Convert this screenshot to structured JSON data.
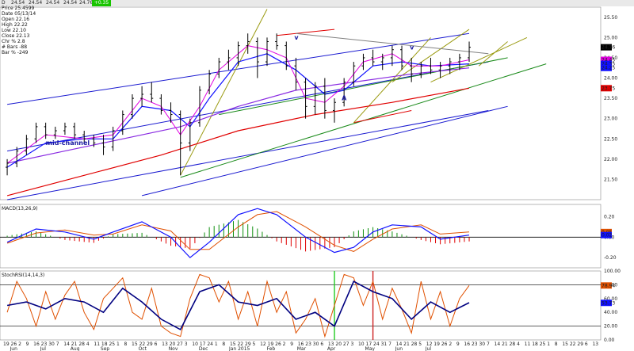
{
  "toolbar": {
    "items": [
      "D",
      "24.54",
      "24.54",
      "24.54",
      "24.54",
      "24.76",
      "+0.35"
    ],
    "change_color": "#18c400"
  },
  "info_box": {
    "lines": [
      "Price 25.4599",
      "Date 05/13/14",
      "Open 22.16",
      "High 22.22",
      "Low 22.10",
      "Close 22.13",
      "Chr % 2.8",
      "# Bars -88",
      "Bar % -249"
    ]
  },
  "annotations": {
    "mid_channel": "mid-channel",
    "marks": [
      "v",
      "v",
      "A"
    ]
  },
  "colors": {
    "price_bars": "#000000",
    "ema_fast": "#e000e0",
    "ema_mid": "#1010ff",
    "ma_purple": "#8a2be2",
    "ma_red": "#e00000",
    "channel": "#1a1ad0",
    "green_line": "#1a8a1a",
    "olive_line": "#9a9a10",
    "macd_line": "#1010ff",
    "signal_line": "#e05000",
    "hist_pos": "#109010",
    "hist_neg": "#e00000"
  },
  "price_panel": {
    "ylim": [
      21.0,
      25.75
    ],
    "ticks": [
      "25.50",
      "25.00",
      "24.50",
      "24.00",
      "23.50",
      "23.00",
      "22.50",
      "22.00",
      "21.50"
    ],
    "tick_values": [
      25.5,
      25.0,
      24.5,
      24.0,
      23.5,
      23.0,
      22.5,
      22.0,
      21.5
    ],
    "badges": [
      {
        "text": "24.76",
        "value": 24.76,
        "color": "#000000"
      },
      {
        "text": "24.45",
        "value": 24.45,
        "color": "#e000e0"
      },
      {
        "text": "24.35",
        "value": 24.35,
        "color": "#1010ff"
      },
      {
        "text": "24.25",
        "value": 24.25,
        "color": "#1010ff"
      },
      {
        "text": "23.75",
        "value": 23.75,
        "color": "#e00000"
      }
    ]
  },
  "macd_panel": {
    "label": "MACD(13,26,9)",
    "ylim": [
      -0.3,
      0.32
    ],
    "ticks": [
      "0.20",
      "0.00",
      "-0.20"
    ],
    "tick_values": [
      0.2,
      0.0,
      -0.2
    ],
    "badges": [
      {
        "text": "0.05",
        "value": 0.05,
        "color": "#e05000"
      },
      {
        "text": "0.02",
        "value": 0.02,
        "color": "#1010ff"
      }
    ]
  },
  "stoch_panel": {
    "label": "StochRSI(14,14,3)",
    "ylim": [
      0,
      100
    ],
    "ticks": [
      "100.00",
      "80.00",
      "60.00",
      "40.00",
      "20.00",
      "0.00"
    ],
    "tick_values": [
      100,
      80,
      60,
      40,
      20,
      0
    ],
    "levels": [
      80,
      20
    ],
    "badges": [
      {
        "text": "78.94",
        "value": 78.94,
        "color": "#e05000"
      },
      {
        "text": "53.73",
        "value": 53.73,
        "color": "#1010ff"
      }
    ]
  },
  "x_axis": {
    "days": [
      "19",
      "26",
      "2",
      "9",
      "16",
      "23",
      "30",
      "7",
      "14",
      "21",
      "28",
      "4",
      "11",
      "18",
      "25",
      "1",
      "8",
      "15",
      "22",
      "29",
      "6",
      "13",
      "20",
      "27",
      "3",
      "10",
      "17",
      "24",
      "1",
      "8",
      "15",
      "22",
      "29",
      "5",
      "12",
      "19",
      "26",
      "2",
      "9",
      "16",
      "23",
      "30",
      "6",
      "13",
      "20",
      "27",
      "3",
      "10",
      "17",
      "24",
      "31",
      "7",
      "14",
      "21",
      "28",
      "5",
      "12",
      "19",
      "26",
      "2",
      "9",
      "16",
      "23",
      "30",
      "7",
      "14",
      "21",
      "28",
      "4",
      "11",
      "18",
      "25",
      "1",
      "8",
      "15",
      "22",
      "29",
      "6",
      "13"
    ],
    "months": [
      "Jun",
      "Jul",
      "Aug",
      "Sep",
      "Oct",
      "Nov",
      "Dec",
      "Jan 2015",
      "Feb",
      "Mar",
      "Apr",
      "May",
      "Jun",
      "Jul"
    ],
    "month_index": [
      1,
      5,
      9,
      13,
      18,
      22,
      26,
      30,
      35,
      39,
      43,
      48,
      52,
      56
    ]
  },
  "chart_data": {
    "type": "line",
    "x_start": 0,
    "weeks": 62,
    "price": [
      {
        "w": 0,
        "o": 21.8,
        "h": 22.0,
        "l": 21.6,
        "c": 21.9
      },
      {
        "w": 1,
        "o": 21.9,
        "h": 22.3,
        "l": 21.8,
        "c": 22.2
      },
      {
        "w": 2,
        "o": 22.2,
        "h": 22.6,
        "l": 22.1,
        "c": 22.5
      },
      {
        "w": 3,
        "o": 22.5,
        "h": 22.9,
        "l": 22.4,
        "c": 22.8
      },
      {
        "w": 4,
        "o": 22.8,
        "h": 22.9,
        "l": 22.5,
        "c": 22.6
      },
      {
        "w": 5,
        "o": 22.6,
        "h": 22.8,
        "l": 22.5,
        "c": 22.7
      },
      {
        "w": 6,
        "o": 22.7,
        "h": 22.9,
        "l": 22.6,
        "c": 22.8
      },
      {
        "w": 7,
        "o": 22.8,
        "h": 22.9,
        "l": 22.5,
        "c": 22.6
      },
      {
        "w": 8,
        "o": 22.6,
        "h": 22.7,
        "l": 22.4,
        "c": 22.5
      },
      {
        "w": 9,
        "o": 22.5,
        "h": 22.6,
        "l": 22.3,
        "c": 22.4
      },
      {
        "w": 10,
        "o": 22.4,
        "h": 22.6,
        "l": 22.1,
        "c": 22.3
      },
      {
        "w": 11,
        "o": 22.3,
        "h": 22.8,
        "l": 22.2,
        "c": 22.7
      },
      {
        "w": 12,
        "o": 22.7,
        "h": 23.2,
        "l": 22.6,
        "c": 23.1
      },
      {
        "w": 13,
        "o": 23.1,
        "h": 23.6,
        "l": 23.0,
        "c": 23.5
      },
      {
        "w": 14,
        "o": 23.5,
        "h": 23.8,
        "l": 23.3,
        "c": 23.6
      },
      {
        "w": 15,
        "o": 23.6,
        "h": 23.9,
        "l": 23.4,
        "c": 23.5
      },
      {
        "w": 16,
        "o": 23.5,
        "h": 23.6,
        "l": 23.1,
        "c": 23.2
      },
      {
        "w": 17,
        "o": 23.2,
        "h": 23.4,
        "l": 22.9,
        "c": 23.1
      },
      {
        "w": 18,
        "o": 23.1,
        "h": 23.2,
        "l": 21.6,
        "c": 22.4
      },
      {
        "w": 19,
        "o": 22.4,
        "h": 23.0,
        "l": 22.2,
        "c": 22.9
      },
      {
        "w": 20,
        "o": 22.9,
        "h": 23.8,
        "l": 22.8,
        "c": 23.7
      },
      {
        "w": 21,
        "o": 23.7,
        "h": 24.2,
        "l": 23.6,
        "c": 24.1
      },
      {
        "w": 22,
        "o": 24.1,
        "h": 24.5,
        "l": 24.0,
        "c": 24.4
      },
      {
        "w": 23,
        "o": 24.4,
        "h": 24.7,
        "l": 24.2,
        "c": 24.5
      },
      {
        "w": 24,
        "o": 24.5,
        "h": 24.9,
        "l": 24.3,
        "c": 24.8
      },
      {
        "w": 25,
        "o": 24.8,
        "h": 25.1,
        "l": 24.6,
        "c": 24.9
      },
      {
        "w": 26,
        "o": 24.9,
        "h": 25.0,
        "l": 24.0,
        "c": 24.4
      },
      {
        "w": 27,
        "o": 24.4,
        "h": 25.0,
        "l": 24.3,
        "c": 24.9
      },
      {
        "w": 28,
        "o": 24.9,
        "h": 25.1,
        "l": 24.7,
        "c": 24.8
      },
      {
        "w": 29,
        "o": 24.8,
        "h": 24.9,
        "l": 24.2,
        "c": 24.3
      },
      {
        "w": 30,
        "o": 24.3,
        "h": 24.5,
        "l": 23.7,
        "c": 23.9
      },
      {
        "w": 31,
        "o": 23.9,
        "h": 24.0,
        "l": 23.0,
        "c": 23.3
      },
      {
        "w": 32,
        "o": 23.3,
        "h": 23.9,
        "l": 23.1,
        "c": 23.8
      },
      {
        "w": 33,
        "o": 23.8,
        "h": 24.0,
        "l": 23.0,
        "c": 23.2
      },
      {
        "w": 34,
        "o": 23.2,
        "h": 23.5,
        "l": 22.9,
        "c": 23.4
      },
      {
        "w": 35,
        "o": 23.4,
        "h": 24.0,
        "l": 23.3,
        "c": 23.9
      },
      {
        "w": 36,
        "o": 23.9,
        "h": 24.4,
        "l": 23.8,
        "c": 24.3
      },
      {
        "w": 37,
        "o": 24.3,
        "h": 24.6,
        "l": 24.2,
        "c": 24.5
      },
      {
        "w": 38,
        "o": 24.5,
        "h": 24.7,
        "l": 24.3,
        "c": 24.4
      },
      {
        "w": 39,
        "o": 24.4,
        "h": 24.6,
        "l": 24.2,
        "c": 24.5
      },
      {
        "w": 40,
        "o": 24.5,
        "h": 24.8,
        "l": 24.3,
        "c": 24.7
      },
      {
        "w": 41,
        "o": 24.7,
        "h": 24.8,
        "l": 24.2,
        "c": 24.3
      },
      {
        "w": 42,
        "o": 24.3,
        "h": 24.5,
        "l": 23.9,
        "c": 24.1
      },
      {
        "w": 43,
        "o": 24.1,
        "h": 24.4,
        "l": 24.0,
        "c": 24.3
      },
      {
        "w": 44,
        "o": 24.3,
        "h": 24.5,
        "l": 24.1,
        "c": 24.2
      },
      {
        "w": 45,
        "o": 24.2,
        "h": 24.4,
        "l": 24.0,
        "c": 24.3
      },
      {
        "w": 46,
        "o": 24.3,
        "h": 24.5,
        "l": 24.1,
        "c": 24.4
      },
      {
        "w": 47,
        "o": 24.4,
        "h": 24.6,
        "l": 24.2,
        "c": 24.5
      },
      {
        "w": 48,
        "o": 24.5,
        "h": 24.9,
        "l": 24.4,
        "c": 24.76
      }
    ],
    "ema_fast": [
      [
        0,
        21.9
      ],
      [
        4,
        22.6
      ],
      [
        8,
        22.5
      ],
      [
        11,
        22.6
      ],
      [
        14,
        23.5
      ],
      [
        16,
        23.3
      ],
      [
        18,
        22.6
      ],
      [
        20,
        23.3
      ],
      [
        22,
        24.2
      ],
      [
        25,
        24.8
      ],
      [
        27,
        24.7
      ],
      [
        29,
        24.5
      ],
      [
        31,
        23.5
      ],
      [
        33,
        23.4
      ],
      [
        35,
        23.8
      ],
      [
        37,
        24.4
      ],
      [
        40,
        24.6
      ],
      [
        42,
        24.3
      ],
      [
        45,
        24.3
      ],
      [
        48,
        24.45
      ]
    ],
    "ema_mid": [
      [
        0,
        21.8
      ],
      [
        4,
        22.4
      ],
      [
        8,
        22.5
      ],
      [
        11,
        22.5
      ],
      [
        14,
        23.3
      ],
      [
        17,
        23.2
      ],
      [
        19,
        22.8
      ],
      [
        21,
        23.5
      ],
      [
        24,
        24.4
      ],
      [
        27,
        24.6
      ],
      [
        30,
        24.2
      ],
      [
        33,
        23.6
      ],
      [
        35,
        23.7
      ],
      [
        38,
        24.3
      ],
      [
        41,
        24.4
      ],
      [
        44,
        24.3
      ],
      [
        48,
        24.35
      ]
    ],
    "ma_purple": [
      [
        0,
        21.9
      ],
      [
        6,
        22.2
      ],
      [
        12,
        22.5
      ],
      [
        18,
        22.8
      ],
      [
        24,
        23.3
      ],
      [
        30,
        23.7
      ],
      [
        36,
        23.9
      ],
      [
        42,
        24.1
      ],
      [
        48,
        24.25
      ]
    ],
    "ma_red": [
      [
        0,
        21.1
      ],
      [
        8,
        21.6
      ],
      [
        16,
        22.1
      ],
      [
        24,
        22.7
      ],
      [
        32,
        23.1
      ],
      [
        40,
        23.4
      ],
      [
        48,
        23.75
      ]
    ],
    "lines": [
      {
        "color": "#1a1ad0",
        "pts": [
          [
            0,
            23.35
          ],
          [
            48,
            25.1
          ]
        ]
      },
      {
        "color": "#1a1ad0",
        "pts": [
          [
            0,
            22.2
          ],
          [
            50,
            24.4
          ]
        ]
      },
      {
        "color": "#1a1ad0",
        "pts": [
          [
            0,
            21.0
          ],
          [
            50,
            23.2
          ]
        ]
      },
      {
        "color": "#1a1ad0",
        "pts": [
          [
            14,
            21.1
          ],
          [
            52,
            23.3
          ]
        ]
      },
      {
        "color": "#1a8a1a",
        "pts": [
          [
            18,
            21.55
          ],
          [
            56,
            24.35
          ]
        ]
      },
      {
        "color": "#1a8a1a",
        "pts": [
          [
            22,
            23.1
          ],
          [
            52,
            24.5
          ]
        ]
      },
      {
        "color": "#e00000",
        "pts": [
          [
            28,
            25.05
          ],
          [
            34,
            25.2
          ]
        ]
      },
      {
        "color": "#e00000",
        "pts": [
          [
            36,
            22.9
          ],
          [
            42,
            23.2
          ]
        ]
      },
      {
        "color": "#9a9a10",
        "pts": [
          [
            18,
            21.6
          ],
          [
            27,
            25.7
          ]
        ]
      },
      {
        "color": "#9a9a10",
        "pts": [
          [
            36,
            22.9
          ],
          [
            44,
            25.0
          ]
        ]
      },
      {
        "color": "#9a9a10",
        "pts": [
          [
            40,
            23.9
          ],
          [
            48,
            25.2
          ]
        ]
      },
      {
        "color": "#9a9a10",
        "pts": [
          [
            44,
            23.9
          ],
          [
            54,
            25.0
          ]
        ]
      },
      {
        "color": "#9a9a10",
        "pts": [
          [
            49,
            24.3
          ],
          [
            52,
            24.9
          ]
        ]
      },
      {
        "color": "#808080",
        "pts": [
          [
            30,
            25.1
          ],
          [
            50,
            24.6
          ]
        ]
      }
    ],
    "macd": [
      [
        0,
        -0.05
      ],
      [
        3,
        0.08
      ],
      [
        6,
        0.05
      ],
      [
        9,
        -0.02
      ],
      [
        11,
        0.05
      ],
      [
        14,
        0.15
      ],
      [
        17,
        0.0
      ],
      [
        19,
        -0.2
      ],
      [
        21,
        -0.05
      ],
      [
        24,
        0.22
      ],
      [
        26,
        0.28
      ],
      [
        28,
        0.22
      ],
      [
        31,
        0.0
      ],
      [
        34,
        -0.15
      ],
      [
        36,
        -0.1
      ],
      [
        38,
        0.05
      ],
      [
        40,
        0.12
      ],
      [
        43,
        0.1
      ],
      [
        45,
        -0.02
      ],
      [
        48,
        0.02
      ]
    ],
    "signal": [
      [
        0,
        -0.06
      ],
      [
        3,
        0.04
      ],
      [
        6,
        0.07
      ],
      [
        9,
        0.02
      ],
      [
        11,
        0.03
      ],
      [
        14,
        0.12
      ],
      [
        17,
        0.06
      ],
      [
        19,
        -0.12
      ],
      [
        21,
        -0.12
      ],
      [
        24,
        0.1
      ],
      [
        26,
        0.22
      ],
      [
        28,
        0.25
      ],
      [
        31,
        0.1
      ],
      [
        34,
        -0.08
      ],
      [
        36,
        -0.14
      ],
      [
        38,
        -0.02
      ],
      [
        40,
        0.08
      ],
      [
        43,
        0.12
      ],
      [
        45,
        0.03
      ],
      [
        48,
        0.05
      ]
    ],
    "stoch_k": [
      [
        0,
        40
      ],
      [
        1,
        85
      ],
      [
        2,
        60
      ],
      [
        3,
        20
      ],
      [
        4,
        70
      ],
      [
        5,
        30
      ],
      [
        6,
        65
      ],
      [
        7,
        85
      ],
      [
        8,
        40
      ],
      [
        9,
        15
      ],
      [
        10,
        60
      ],
      [
        11,
        75
      ],
      [
        12,
        90
      ],
      [
        13,
        40
      ],
      [
        14,
        30
      ],
      [
        15,
        75
      ],
      [
        16,
        20
      ],
      [
        17,
        10
      ],
      [
        18,
        5
      ],
      [
        19,
        60
      ],
      [
        20,
        95
      ],
      [
        21,
        90
      ],
      [
        22,
        55
      ],
      [
        23,
        85
      ],
      [
        24,
        30
      ],
      [
        25,
        70
      ],
      [
        26,
        20
      ],
      [
        27,
        85
      ],
      [
        28,
        40
      ],
      [
        29,
        70
      ],
      [
        30,
        10
      ],
      [
        31,
        30
      ],
      [
        32,
        60
      ],
      [
        33,
        5
      ],
      [
        34,
        50
      ],
      [
        35,
        95
      ],
      [
        36,
        90
      ],
      [
        37,
        50
      ],
      [
        38,
        85
      ],
      [
        39,
        30
      ],
      [
        40,
        75
      ],
      [
        41,
        45
      ],
      [
        42,
        10
      ],
      [
        43,
        85
      ],
      [
        44,
        30
      ],
      [
        45,
        70
      ],
      [
        46,
        20
      ],
      [
        47,
        60
      ],
      [
        48,
        79
      ]
    ],
    "stoch_d": [
      [
        0,
        50
      ],
      [
        2,
        55
      ],
      [
        4,
        45
      ],
      [
        6,
        60
      ],
      [
        8,
        55
      ],
      [
        10,
        40
      ],
      [
        12,
        75
      ],
      [
        14,
        55
      ],
      [
        16,
        30
      ],
      [
        18,
        15
      ],
      [
        20,
        70
      ],
      [
        22,
        80
      ],
      [
        24,
        55
      ],
      [
        26,
        50
      ],
      [
        28,
        60
      ],
      [
        30,
        30
      ],
      [
        32,
        40
      ],
      [
        34,
        20
      ],
      [
        36,
        85
      ],
      [
        38,
        70
      ],
      [
        40,
        60
      ],
      [
        42,
        30
      ],
      [
        44,
        55
      ],
      [
        46,
        40
      ],
      [
        48,
        54
      ]
    ]
  }
}
